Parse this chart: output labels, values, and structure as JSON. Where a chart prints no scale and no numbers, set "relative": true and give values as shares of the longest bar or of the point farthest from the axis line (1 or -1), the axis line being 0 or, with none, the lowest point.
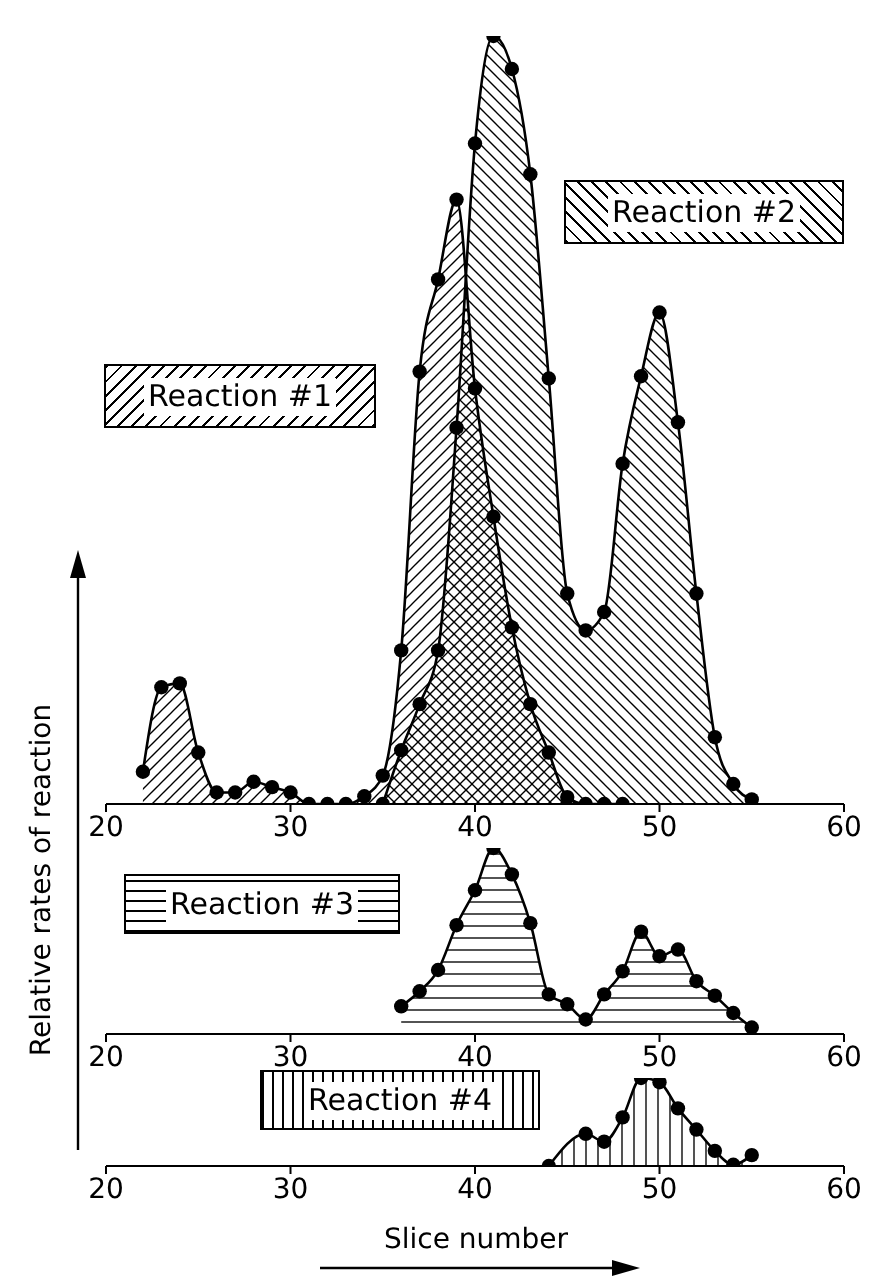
{
  "chart_data": [
    {
      "type": "area",
      "relative": true,
      "ylabel": "Relative rates of reaction",
      "xlim": [
        20,
        60
      ],
      "xticks": [
        20,
        30,
        40,
        50,
        60
      ],
      "marker": "circle",
      "grid": false,
      "series": [
        {
          "name": "Reaction #1",
          "color": "#000000",
          "x": [
            22,
            23,
            24,
            25,
            26,
            27,
            28,
            29,
            30,
            31,
            32,
            33,
            34,
            35,
            36,
            37,
            38,
            39,
            40,
            41,
            42,
            43,
            44,
            45,
            46,
            47,
            48
          ],
          "values": [
            0.042,
            0.152,
            0.157,
            0.067,
            0.015,
            0.015,
            0.029,
            0.022,
            0.015,
            0,
            0,
            0,
            0.01,
            0.037,
            0.2,
            0.563,
            0.683,
            0.787,
            0.541,
            0.374,
            0.23,
            0.13,
            0.067,
            0.009,
            0,
            0,
            0
          ]
        },
        {
          "name": "Reaction #2",
          "color": "#000000",
          "x": [
            35,
            36,
            37,
            38,
            39,
            40,
            41,
            42,
            43,
            44,
            45,
            46,
            47,
            48,
            49,
            50,
            51,
            52,
            53,
            54,
            55
          ],
          "values": [
            0,
            0.07,
            0.13,
            0.2,
            0.49,
            0.86,
            1.0,
            0.957,
            0.82,
            0.554,
            0.274,
            0.226,
            0.25,
            0.443,
            0.557,
            0.64,
            0.497,
            0.274,
            0.087,
            0.026,
            0.006
          ]
        }
      ]
    },
    {
      "type": "area",
      "relative": true,
      "xlim": [
        20,
        60
      ],
      "xticks": [
        20,
        30,
        40,
        50,
        60
      ],
      "marker": "circle",
      "grid": false,
      "series": [
        {
          "name": "Reaction #3",
          "color": "#000000",
          "x": [
            36,
            37,
            38,
            39,
            40,
            41,
            42,
            43,
            44,
            45,
            46,
            47,
            48,
            49,
            50,
            51,
            52,
            53,
            54,
            55
          ],
          "values": [
            0.149,
            0.23,
            0.344,
            0.585,
            0.773,
            1.0,
            0.858,
            0.596,
            0.213,
            0.16,
            0.078,
            0.213,
            0.337,
            0.55,
            0.418,
            0.454,
            0.284,
            0.206,
            0.113,
            0.035
          ]
        }
      ]
    },
    {
      "type": "area",
      "relative": true,
      "xlabel": "Slice number",
      "xlim": [
        20,
        60
      ],
      "xticks": [
        20,
        30,
        40,
        50,
        60
      ],
      "marker": "circle",
      "grid": false,
      "series": [
        {
          "name": "Reaction #4",
          "color": "#000000",
          "x": [
            44,
            46,
            47,
            48,
            49,
            50,
            51,
            52,
            53,
            54,
            55
          ],
          "values": [
            0,
            0.366,
            0.276,
            0.552,
            1.0,
            0.952,
            0.655,
            0.414,
            0.172,
            0.014,
            0.124
          ]
        }
      ]
    }
  ]
}
